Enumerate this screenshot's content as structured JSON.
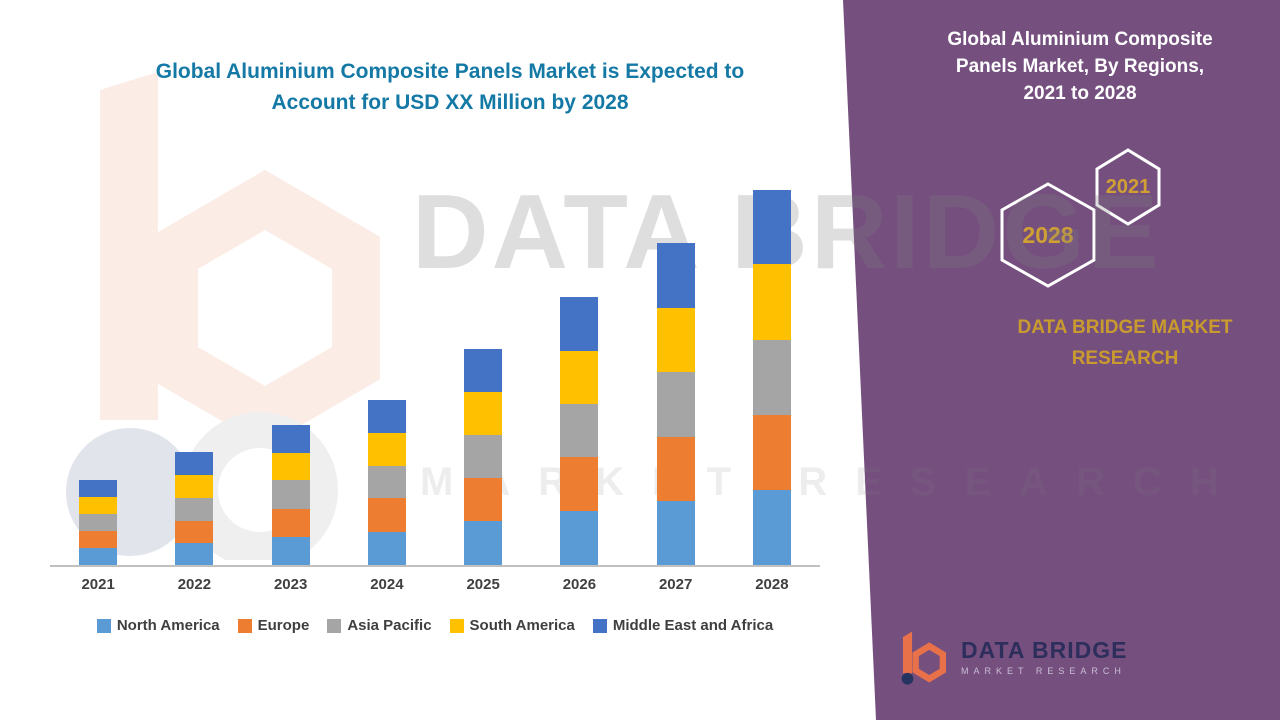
{
  "left": {
    "title_lines": [
      "Global Aluminium Composite Panels Market is Expected to",
      "Account for USD XX Million by 2028"
    ],
    "title_color": "#1579A6"
  },
  "watermark": {
    "line1": "DATA BRIDGE",
    "line2": "MARKET RESEARCH"
  },
  "right": {
    "title_lines": [
      "Global Aluminium Composite",
      "Panels Market, By Regions,",
      "2021 to 2028"
    ],
    "hex_small_year": "2021",
    "hex_large_year": "2028",
    "brand_text": "DATA BRIDGE MARKET RESEARCH",
    "logo_name": "DATA BRIDGE",
    "logo_sub": "MARKET RESEARCH",
    "panel_color": "#75507F",
    "gold_color": "#D1A033",
    "logo_orange": "#E8714A",
    "logo_navy": "#26355F"
  },
  "chart_data": {
    "type": "bar",
    "stacked": true,
    "title": "Global Aluminium Composite Panels Market, By Regions, 2021 to 2028",
    "xlabel": "",
    "ylabel": "",
    "grid": false,
    "legend_position": "bottom",
    "value_axis_labeled": false,
    "values_note": "Y-axis not labeled in source (market shown as USD XX Million); values are visual estimates in relative units",
    "categories": [
      "2021",
      "2022",
      "2023",
      "2024",
      "2025",
      "2026",
      "2027",
      "2028"
    ],
    "series": [
      {
        "name": "North America",
        "color": "#5B9BD5",
        "values": [
          2.0,
          2.6,
          3.3,
          3.9,
          5.1,
          6.3,
          7.5,
          8.8
        ]
      },
      {
        "name": "Europe",
        "color": "#ED7D31",
        "values": [
          2.0,
          2.6,
          3.3,
          3.9,
          5.1,
          6.3,
          7.5,
          8.8
        ]
      },
      {
        "name": "Asia Pacific",
        "color": "#A5A5A5",
        "values": [
          2.0,
          2.7,
          3.3,
          3.8,
          5.0,
          6.3,
          7.6,
          8.8
        ]
      },
      {
        "name": "South America",
        "color": "#FFC000",
        "values": [
          2.0,
          2.6,
          3.2,
          3.9,
          5.1,
          6.2,
          7.5,
          8.8
        ]
      },
      {
        "name": "Middle East and Africa",
        "color": "#4472C4",
        "values": [
          2.0,
          2.7,
          3.3,
          3.8,
          5.0,
          6.3,
          7.6,
          8.7
        ]
      }
    ],
    "ylim": [
      0,
      48
    ]
  }
}
